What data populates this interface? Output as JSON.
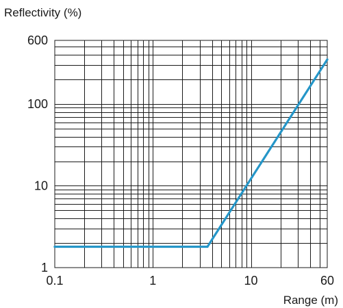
{
  "chart_data": {
    "type": "line",
    "title": "",
    "xlabel": "Range (m)",
    "ylabel": "Reflectivity (%)",
    "x_scale": "log",
    "y_scale": "log",
    "xlim": [
      0.1,
      60
    ],
    "ylim": [
      1,
      600
    ],
    "x_ticks": [
      {
        "value": 0.1,
        "label": "0.1"
      },
      {
        "value": 1,
        "label": "1"
      },
      {
        "value": 10,
        "label": "10"
      },
      {
        "value": 60,
        "label": "60"
      }
    ],
    "y_ticks": [
      {
        "value": 1,
        "label": "1"
      },
      {
        "value": 10,
        "label": "10"
      },
      {
        "value": 100,
        "label": "100"
      },
      {
        "value": 600,
        "label": "600"
      }
    ],
    "grid": true,
    "grid_color": "#1a1a1a",
    "series": [
      {
        "color": "#2596c8",
        "points": [
          {
            "x": 0.1,
            "y": 1.8
          },
          {
            "x": 3.6,
            "y": 1.8
          },
          {
            "x": 60,
            "y": 350
          }
        ]
      }
    ]
  }
}
